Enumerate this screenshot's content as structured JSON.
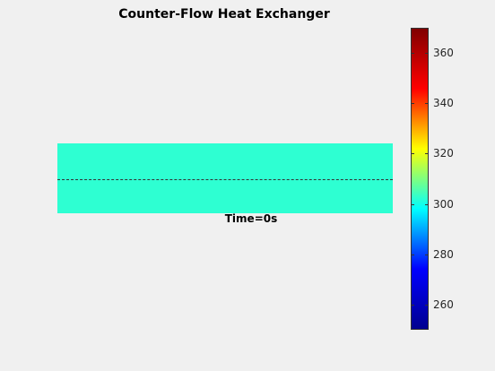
{
  "figure": {
    "title": "Counter-Flow Heat Exchanger",
    "time_label": "Time=0s",
    "exchanger_color": "#2effd2"
  },
  "colorbar": {
    "colormap": "jet",
    "min": 250,
    "max": 370,
    "ticks": [
      "260",
      "280",
      "300",
      "320",
      "340",
      "360"
    ],
    "colors": [
      "#00008f",
      "#0000ff",
      "#00ffff",
      "#ffff00",
      "#ff0000",
      "#800000"
    ]
  }
}
